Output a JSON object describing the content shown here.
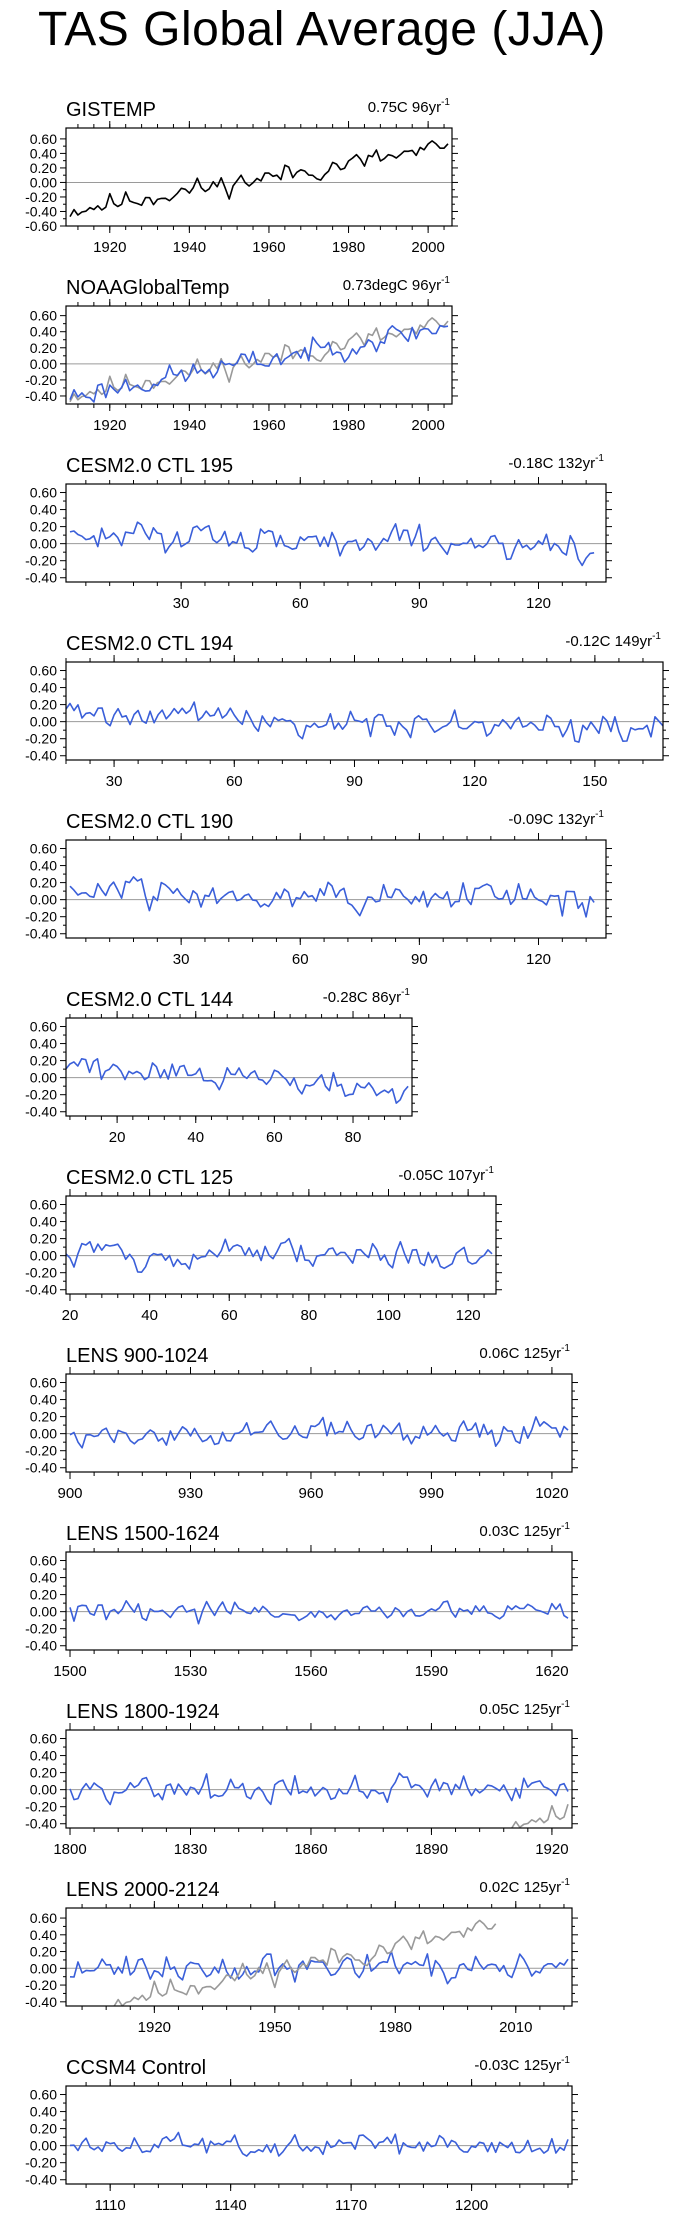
{
  "title": "TAS Global Average (JJA)",
  "colors": {
    "model": "#3a5fd9",
    "obs": "#999999",
    "gistemp": "#000000",
    "zero": "#9a9a9a",
    "axis": "#000000"
  },
  "chart_data": [
    {
      "type": "line",
      "title": "GISTEMP",
      "trend": "0.75C 96yr",
      "trend_sup": "-1",
      "xlim": [
        1909,
        2006
      ],
      "ylim": [
        -0.6,
        0.75
      ],
      "yticks": [
        -0.6,
        -0.4,
        -0.2,
        0,
        0.2,
        0.4,
        0.6
      ],
      "ylabels": [
        "-0.60",
        "-0.40",
        "-0.20",
        "0.00",
        "0.20",
        "0.40",
        "0.60"
      ],
      "xticks": [
        1920,
        1940,
        1960,
        1980,
        2000
      ],
      "xlabels": [
        "1920",
        "1940",
        "1960",
        "1980",
        "2000"
      ],
      "series": [
        {
          "name": "GISTEMP",
          "color": "gistemp",
          "x0": 1910,
          "step": 1,
          "trendStart": -0.38,
          "trendEnd": 0.48,
          "noise": 0.09,
          "seed": 11
        }
      ]
    },
    {
      "type": "line",
      "title": "NOAAGlobalTemp",
      "trend": "0.73degC 96yr",
      "trend_sup": "-1",
      "xlim": [
        1909,
        2006
      ],
      "ylim": [
        -0.5,
        0.72
      ],
      "yticks": [
        -0.4,
        -0.2,
        0,
        0.2,
        0.4,
        0.6
      ],
      "ylabels": [
        "-0.40",
        "-0.20",
        "0.00",
        "0.20",
        "0.40",
        "0.60"
      ],
      "xticks": [
        1920,
        1940,
        1960,
        1980,
        2000
      ],
      "xlabels": [
        "1920",
        "1940",
        "1960",
        "1980",
        "2000"
      ],
      "series": [
        {
          "name": "GISTEMP overlay",
          "color": "obs",
          "x0": 1910,
          "step": 1,
          "trendStart": -0.38,
          "trendEnd": 0.48,
          "noise": 0.09,
          "seed": 11
        },
        {
          "name": "NOAAGlobalTemp",
          "color": "model",
          "x0": 1910,
          "step": 1,
          "trendStart": -0.4,
          "trendEnd": 0.47,
          "noise": 0.09,
          "seed": 23
        }
      ]
    },
    {
      "type": "line",
      "title": "CESM2.0 CTL 195",
      "trend": "-0.18C 132yr",
      "trend_sup": "-1",
      "xlim": [
        1,
        137
      ],
      "ylim": [
        -0.45,
        0.7
      ],
      "yticks": [
        -0.4,
        -0.2,
        0,
        0.2,
        0.4,
        0.6
      ],
      "ylabels": [
        "-0.40",
        "-0.20",
        "0.00",
        "0.20",
        "0.40",
        "0.60"
      ],
      "xticks": [
        30,
        60,
        90,
        120
      ],
      "xlabels": [
        "30",
        "60",
        "90",
        "120"
      ],
      "series": [
        {
          "name": "CESM2.0 CTL 195",
          "color": "model",
          "x0": 2,
          "step": 1,
          "count": 133,
          "trendStart": 0.12,
          "trendEnd": -0.05,
          "noise": 0.1,
          "seed": 195
        }
      ]
    },
    {
      "type": "line",
      "title": "CESM2.0 CTL 194",
      "trend": "-0.12C 149yr",
      "trend_sup": "-1",
      "xlim": [
        18,
        167
      ],
      "ylim": [
        -0.45,
        0.7
      ],
      "yticks": [
        -0.4,
        -0.2,
        0,
        0.2,
        0.4,
        0.6
      ],
      "ylabels": [
        "-0.40",
        "-0.20",
        "0.00",
        "0.20",
        "0.40",
        "0.60"
      ],
      "xticks": [
        30,
        60,
        90,
        120,
        150
      ],
      "xlabels": [
        "30",
        "60",
        "90",
        "120",
        "150"
      ],
      "series": [
        {
          "name": "CESM2.0 CTL 194",
          "color": "model",
          "x0": 18,
          "step": 1,
          "count": 150,
          "trendStart": 0.1,
          "trendEnd": -0.1,
          "noise": 0.09,
          "seed": 194
        }
      ]
    },
    {
      "type": "line",
      "title": "CESM2.0 CTL 190",
      "trend": "-0.09C 132yr",
      "trend_sup": "-1",
      "xlim": [
        1,
        137
      ],
      "ylim": [
        -0.45,
        0.7
      ],
      "yticks": [
        -0.4,
        -0.2,
        0,
        0.2,
        0.4,
        0.6
      ],
      "ylabels": [
        "-0.40",
        "-0.20",
        "0.00",
        "0.20",
        "0.40",
        "0.60"
      ],
      "xticks": [
        30,
        60,
        90,
        120
      ],
      "xlabels": [
        "30",
        "60",
        "90",
        "120"
      ],
      "series": [
        {
          "name": "CESM2.0 CTL 190",
          "color": "model",
          "x0": 2,
          "step": 1,
          "count": 133,
          "trendStart": 0.12,
          "trendEnd": 0.0,
          "noise": 0.1,
          "seed": 190
        }
      ]
    },
    {
      "type": "line",
      "title": "CESM2.0 CTL 144",
      "trend": "-0.28C 86yr",
      "trend_sup": "-1",
      "xlim": [
        7,
        95
      ],
      "ylim": [
        -0.45,
        0.7
      ],
      "yticks": [
        -0.4,
        -0.2,
        0,
        0.2,
        0.4,
        0.6
      ],
      "ylabels": [
        "-0.40",
        "-0.20",
        "0.00",
        "0.20",
        "0.40",
        "0.60"
      ],
      "xticks": [
        20,
        40,
        60,
        80
      ],
      "xlabels": [
        "20",
        "40",
        "60",
        "80"
      ],
      "series": [
        {
          "name": "CESM2.0 CTL 144",
          "color": "model",
          "x0": 7,
          "step": 1,
          "count": 88,
          "trendStart": 0.16,
          "trendEnd": -0.15,
          "noise": 0.08,
          "seed": 144
        }
      ]
    },
    {
      "type": "line",
      "title": "CESM2.0 CTL 125",
      "trend": "-0.05C 107yr",
      "trend_sup": "-1",
      "xlim": [
        19,
        127
      ],
      "ylim": [
        -0.45,
        0.7
      ],
      "yticks": [
        -0.4,
        -0.2,
        0,
        0.2,
        0.4,
        0.6
      ],
      "ylabels": [
        "-0.40",
        "-0.20",
        "0.00",
        "0.20",
        "0.40",
        "0.60"
      ],
      "xticks": [
        20,
        40,
        60,
        80,
        100,
        120
      ],
      "xlabels": [
        "20",
        "40",
        "60",
        "80",
        "100",
        "120"
      ],
      "series": [
        {
          "name": "CESM2.0 CTL 125",
          "color": "model",
          "x0": 19,
          "step": 1,
          "count": 108,
          "trendStart": 0.05,
          "trendEnd": -0.02,
          "noise": 0.1,
          "seed": 125
        }
      ]
    },
    {
      "type": "line",
      "title": "LENS 900-1024",
      "trend": "0.06C 125yr",
      "trend_sup": "-1",
      "xlim": [
        899,
        1025
      ],
      "ylim": [
        -0.45,
        0.7
      ],
      "yticks": [
        -0.4,
        -0.2,
        0,
        0.2,
        0.4,
        0.6
      ],
      "ylabels": [
        "-0.40",
        "-0.20",
        "0.00",
        "0.20",
        "0.40",
        "0.60"
      ],
      "xticks": [
        900,
        930,
        960,
        990,
        1020
      ],
      "xlabels": [
        "900",
        "930",
        "960",
        "990",
        "1020"
      ],
      "series": [
        {
          "name": "LENS 900-1024",
          "color": "model",
          "x0": 900,
          "step": 1,
          "count": 125,
          "trendStart": -0.02,
          "trendEnd": 0.04,
          "noise": 0.08,
          "seed": 900
        }
      ]
    },
    {
      "type": "line",
      "title": "LENS 1500-1624",
      "trend": "0.03C 125yr",
      "trend_sup": "-1",
      "xlim": [
        1499,
        1625
      ],
      "ylim": [
        -0.45,
        0.7
      ],
      "yticks": [
        -0.4,
        -0.2,
        0,
        0.2,
        0.4,
        0.6
      ],
      "ylabels": [
        "-0.40",
        "-0.20",
        "0.00",
        "0.20",
        "0.40",
        "0.60"
      ],
      "xticks": [
        1500,
        1530,
        1560,
        1590,
        1620
      ],
      "xlabels": [
        "1500",
        "1530",
        "1560",
        "1590",
        "1620"
      ],
      "series": [
        {
          "name": "LENS 1500-1624",
          "color": "model",
          "x0": 1500,
          "step": 1,
          "count": 125,
          "trendStart": -0.01,
          "trendEnd": 0.02,
          "noise": 0.07,
          "seed": 1500
        }
      ]
    },
    {
      "type": "line",
      "title": "LENS 1800-1924",
      "trend": "0.05C 125yr",
      "trend_sup": "-1",
      "xlim": [
        1799,
        1925
      ],
      "ylim": [
        -0.45,
        0.7
      ],
      "yticks": [
        -0.4,
        -0.2,
        0,
        0.2,
        0.4,
        0.6
      ],
      "ylabels": [
        "-0.40",
        "-0.20",
        "0.00",
        "0.20",
        "0.40",
        "0.60"
      ],
      "xticks": [
        1800,
        1830,
        1860,
        1890,
        1920
      ],
      "xlabels": [
        "1800",
        "1830",
        "1860",
        "1890",
        "1920"
      ],
      "series": [
        {
          "name": "LENS 1800-1924",
          "color": "model",
          "x0": 1800,
          "step": 1,
          "count": 125,
          "trendStart": -0.03,
          "trendEnd": 0.05,
          "noise": 0.09,
          "seed": 1800
        },
        {
          "name": "GISTEMP overlay",
          "color": "obs",
          "x0": 1910,
          "step": 1,
          "count": 15,
          "trendStart": -0.38,
          "trendEnd": -0.28,
          "noise": 0.08,
          "seed": 11
        }
      ]
    },
    {
      "type": "line",
      "title": "LENS 2000-2124",
      "trend": "0.02C 125yr",
      "trend_sup": "-1",
      "xlim": [
        1898,
        2024
      ],
      "ylim": [
        -0.45,
        0.72
      ],
      "yticks": [
        -0.4,
        -0.2,
        0,
        0.2,
        0.4,
        0.6
      ],
      "ylabels": [
        "-0.40",
        "-0.20",
        "0.00",
        "0.20",
        "0.40",
        "0.60"
      ],
      "xticks": [
        1920,
        1950,
        1980,
        2010
      ],
      "xlabels": [
        "1920",
        "1950",
        "1980",
        "2010"
      ],
      "series": [
        {
          "name": "LENS 2000-2124",
          "color": "model",
          "x0": 1899,
          "step": 1,
          "count": 125,
          "trendStart": -0.02,
          "trendEnd": 0.02,
          "noise": 0.09,
          "seed": 2000
        },
        {
          "name": "GISTEMP overlay",
          "color": "obs",
          "x0": 1910,
          "step": 1,
          "count": 96,
          "trendStart": -0.38,
          "trendEnd": 0.48,
          "noise": 0.09,
          "seed": 11
        }
      ]
    },
    {
      "type": "line",
      "title": "CCSM4 Control",
      "trend": "-0.03C 125yr",
      "trend_sup": "-1",
      "xlim": [
        1099,
        1225
      ],
      "ylim": [
        -0.45,
        0.7
      ],
      "yticks": [
        -0.4,
        -0.2,
        0,
        0.2,
        0.4,
        0.6
      ],
      "ylabels": [
        "-0.40",
        "-0.20",
        "0.00",
        "0.20",
        "0.40",
        "0.60"
      ],
      "xticks": [
        1110,
        1140,
        1170,
        1200
      ],
      "xlabels": [
        "1110",
        "1140",
        "1170",
        "1200"
      ],
      "series": [
        {
          "name": "CCSM4 Control",
          "color": "model",
          "x0": 1100,
          "step": 1,
          "count": 125,
          "trendStart": 0.01,
          "trendEnd": -0.02,
          "noise": 0.07,
          "seed": 4
        }
      ]
    }
  ]
}
